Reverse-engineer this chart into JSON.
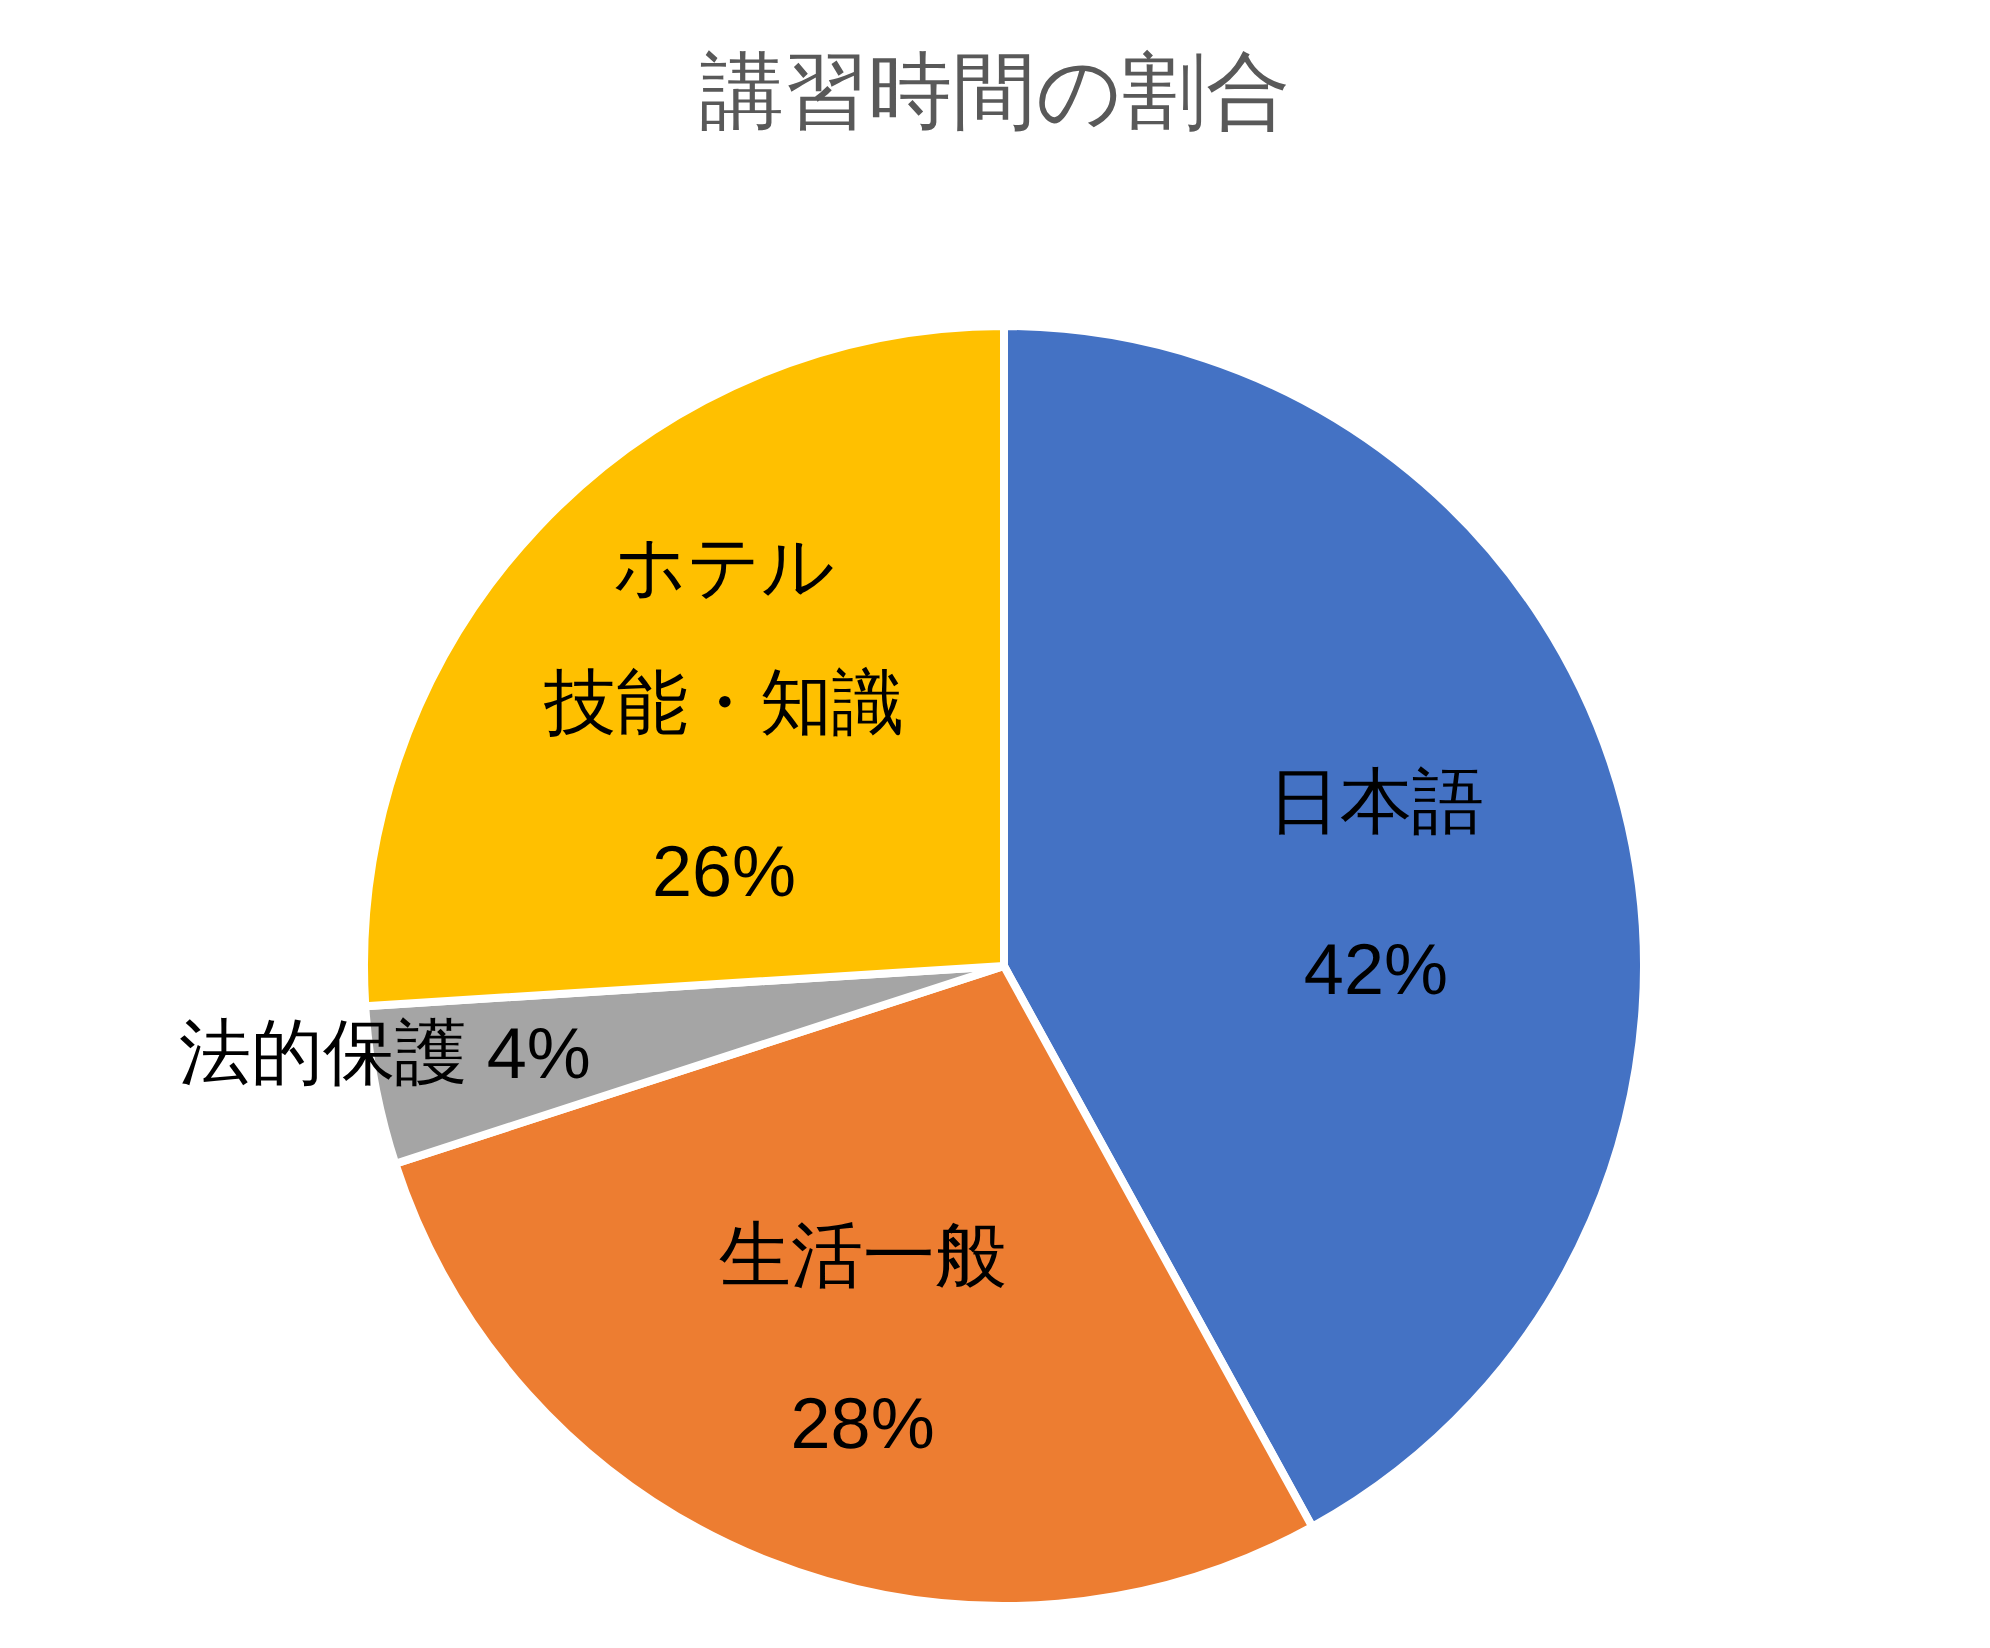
{
  "chart_data": {
    "type": "pie",
    "title": "講習時間の割合",
    "categories": [
      "日本語",
      "生活一般",
      "法的保護",
      "ホテル技能・知識"
    ],
    "values": [
      42,
      28,
      4,
      26
    ],
    "value_labels": [
      "42%",
      "28%",
      "4%",
      "26%"
    ],
    "colors": [
      "#4472c4",
      "#ed7d31",
      "#a5a5a5",
      "#ffc000"
    ],
    "legend": false
  }
}
